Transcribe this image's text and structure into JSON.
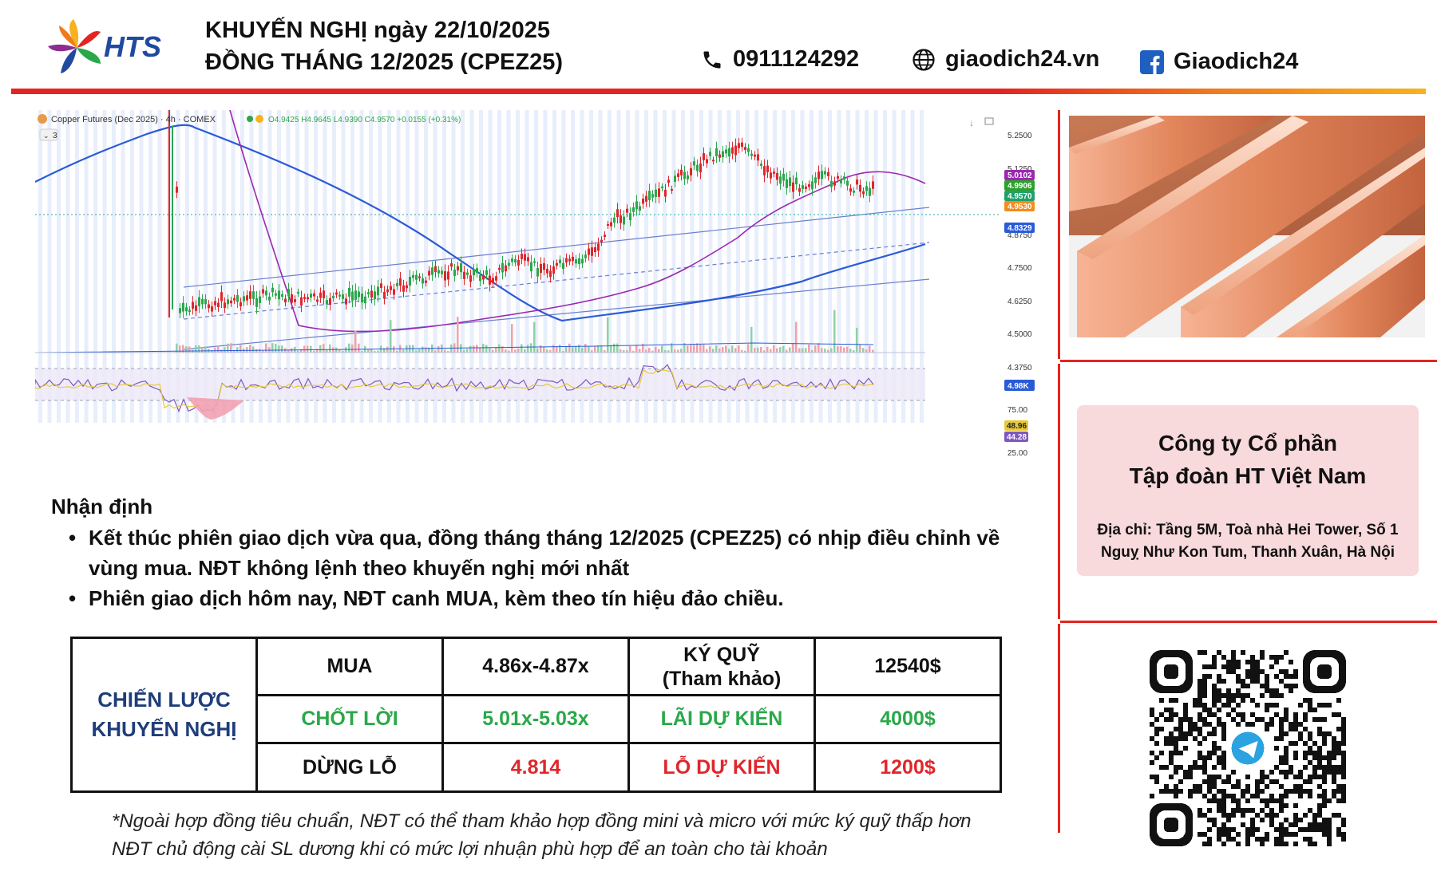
{
  "header": {
    "logo_text": "HTS",
    "title_line1": "KHUYẾN NGHỊ ngày 22/10/2025",
    "title_line2": "ĐỒNG THÁNG 12/2025 (CPEZ25)",
    "phone": "0911124292",
    "website": "giaodich24.vn",
    "facebook": "Giaodich24",
    "colors": {
      "accent_red": "#e52420",
      "accent_orange": "#f7b21e",
      "logo_blue": "#1f4aa0"
    }
  },
  "chart": {
    "symbol_title": "Copper Futures (Dec 2025) · 4h · COMEX",
    "ohlc": "O4.9425 H4.9645 L4.9390 C4.9570 +0.0155 (+0.31%)",
    "collapsed_count": "3",
    "price_axis": [
      "5.2500",
      "5.1250",
      "4.8750",
      "4.7500",
      "4.6250",
      "4.5000",
      "4.3750"
    ],
    "price_badges": [
      {
        "text": "5.0102",
        "color": "#9b27b0"
      },
      {
        "text": "4.9906",
        "color": "#2ca02c"
      },
      {
        "text": "4.9570",
        "color": "#22a06b"
      },
      {
        "text": "4.9530",
        "color": "#f28c1e"
      },
      {
        "text": "4.8329",
        "color": "#2a5bd7"
      }
    ],
    "volume_badge": "4.98K",
    "rsi_axis": [
      "75.00",
      "25.00"
    ],
    "rsi_badges": [
      {
        "text": "48.96",
        "color": "#e8c93a"
      },
      {
        "text": "44.28",
        "color": "#7e57c2"
      }
    ]
  },
  "analysis": {
    "title": "Nhận định",
    "bullets": [
      "Kết thúc phiên giao dịch vừa qua, đồng tháng tháng 12/2025 (CPEZ25) có nhịp điều chỉnh về vùng mua. NĐT không lệnh theo khuyến nghị mới nhất",
      "Phiên giao dịch hôm nay, NĐT canh MUA, kèm theo tín hiệu đảo chiều."
    ]
  },
  "strategy": {
    "label_line1": "CHIẾN LƯỢC",
    "label_line2": "KHUYẾN NGHỊ",
    "buy_label": "MUA",
    "buy_range": "4.86x-4.87x",
    "margin_label_line1": "KÝ QUỸ",
    "margin_label_line2": "(Tham khảo)",
    "margin_value": "12540$",
    "take_profit_label": "CHỐT LỜI",
    "take_profit_range": "5.01x-5.03x",
    "expected_profit_label": "LÃI DỰ KIẾN",
    "expected_profit_value": "4000$",
    "stop_loss_label": "DỪNG LỖ",
    "stop_loss_value": "4.814",
    "expected_loss_label": "LỖ DỰ KIẾN",
    "expected_loss_value": "1200$"
  },
  "note": {
    "line1": "*Ngoài hợp đồng tiêu chuẩn, NĐT có thể tham khảo hợp đồng mini và micro với mức ký quỹ thấp hơn",
    "line2": "NĐT chủ động cài SL dương khi có mức lợi nhuận phù hợp để an toàn cho tài khoản"
  },
  "company": {
    "name_line1": "Công ty Cổ phần",
    "name_line2": "Tập đoàn HT Việt Nam",
    "address_line1": "Địa chỉ: Tầng 5M, Toà nhà Hei Tower, Số 1",
    "address_line2": "Nguỵ Như Kon Tum, Thanh Xuân, Hà Nội"
  }
}
